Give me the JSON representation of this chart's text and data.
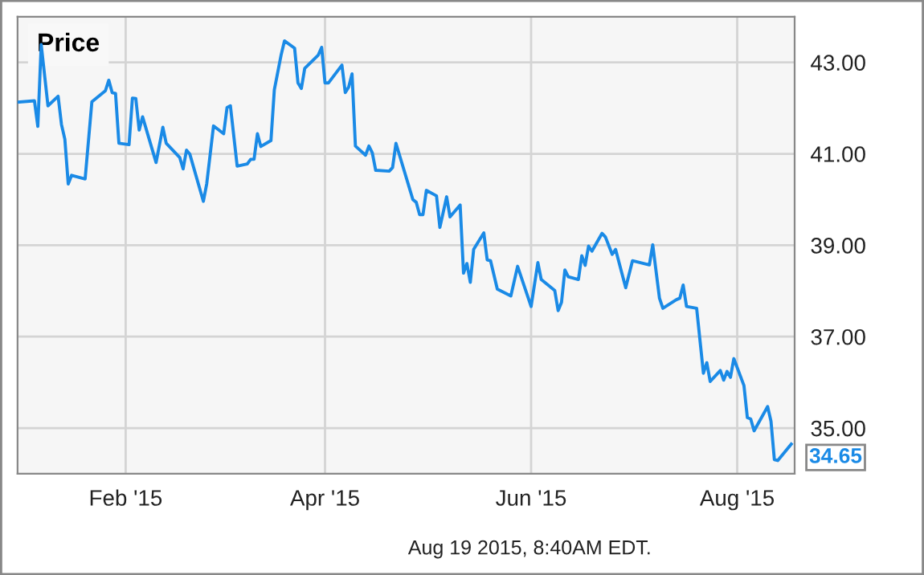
{
  "chart_data": {
    "type": "line",
    "title": "Price",
    "x": [
      "2014-12-31",
      "2015-01-05",
      "2015-01-06",
      "2015-01-07",
      "2015-01-09",
      "2015-01-12",
      "2015-01-13",
      "2015-01-14",
      "2015-01-15",
      "2015-01-16",
      "2015-01-20",
      "2015-01-22",
      "2015-01-26",
      "2015-01-27",
      "2015-01-28",
      "2015-01-29",
      "2015-01-30",
      "2015-02-02",
      "2015-02-03",
      "2015-02-04",
      "2015-02-05",
      "2015-02-06",
      "2015-02-10",
      "2015-02-12",
      "2015-02-13",
      "2015-02-17",
      "2015-02-18",
      "2015-02-19",
      "2015-02-20",
      "2015-02-24",
      "2015-02-25",
      "2015-02-27",
      "2015-03-02",
      "2015-03-03",
      "2015-03-04",
      "2015-03-06",
      "2015-03-09",
      "2015-03-10",
      "2015-03-11",
      "2015-03-12",
      "2015-03-13",
      "2015-03-16",
      "2015-03-17",
      "2015-03-19",
      "2015-03-20",
      "2015-03-23",
      "2015-03-24",
      "2015-03-25",
      "2015-03-26",
      "2015-03-30",
      "2015-03-31",
      "2015-04-01",
      "2015-04-02",
      "2015-04-06",
      "2015-04-07",
      "2015-04-08",
      "2015-04-09",
      "2015-04-10",
      "2015-04-13",
      "2015-04-14",
      "2015-04-15",
      "2015-04-16",
      "2015-04-20",
      "2015-04-21",
      "2015-04-22",
      "2015-04-27",
      "2015-04-28",
      "2015-04-29",
      "2015-04-30",
      "2015-05-01",
      "2015-05-04",
      "2015-05-05",
      "2015-05-07",
      "2015-05-08",
      "2015-05-11",
      "2015-05-12",
      "2015-05-13",
      "2015-05-14",
      "2015-05-15",
      "2015-05-18",
      "2015-05-19",
      "2015-05-20",
      "2015-05-22",
      "2015-05-26",
      "2015-05-28",
      "2015-06-01",
      "2015-06-03",
      "2015-06-04",
      "2015-06-08",
      "2015-06-09",
      "2015-06-10",
      "2015-06-11",
      "2015-06-12",
      "2015-06-15",
      "2015-06-16",
      "2015-06-17",
      "2015-06-18",
      "2015-06-19",
      "2015-06-22",
      "2015-06-23",
      "2015-06-25",
      "2015-06-26",
      "2015-06-29",
      "2015-07-01",
      "2015-07-06",
      "2015-07-07",
      "2015-07-09",
      "2015-07-10",
      "2015-07-14",
      "2015-07-15",
      "2015-07-16",
      "2015-07-17",
      "2015-07-20",
      "2015-07-22",
      "2015-07-23",
      "2015-07-24",
      "2015-07-27",
      "2015-07-28",
      "2015-07-29",
      "2015-07-30",
      "2015-07-31",
      "2015-08-03",
      "2015-08-04",
      "2015-08-05",
      "2015-08-06",
      "2015-08-10",
      "2015-08-11",
      "2015-08-12",
      "2015-08-13",
      "2015-08-17"
    ],
    "series": [
      {
        "color": "#1a8ae6",
        "values": [
          42.13,
          42.16,
          41.6,
          43.39,
          42.05,
          42.26,
          41.64,
          41.32,
          40.34,
          40.53,
          40.45,
          42.14,
          42.38,
          42.61,
          42.34,
          42.32,
          41.23,
          41.2,
          42.22,
          42.21,
          41.52,
          41.81,
          40.81,
          41.58,
          41.23,
          40.92,
          40.67,
          41.08,
          40.99,
          39.96,
          40.35,
          41.61,
          41.44,
          42.01,
          42.05,
          40.73,
          40.78,
          40.88,
          40.88,
          41.44,
          41.16,
          41.29,
          42.4,
          43.16,
          43.47,
          43.31,
          42.55,
          42.43,
          42.87,
          43.16,
          43.33,
          42.55,
          42.55,
          42.94,
          42.34,
          42.46,
          42.75,
          41.17,
          40.97,
          41.17,
          41.02,
          40.64,
          40.62,
          40.7,
          41.23,
          40.0,
          39.94,
          39.67,
          39.67,
          40.2,
          40.08,
          39.39,
          40.06,
          39.62,
          39.88,
          38.39,
          38.6,
          38.19,
          38.91,
          39.27,
          38.68,
          38.66,
          38.04,
          37.89,
          38.54,
          37.66,
          38.62,
          38.25,
          38.01,
          37.57,
          37.75,
          38.46,
          38.31,
          38.25,
          38.77,
          38.56,
          38.98,
          38.87,
          39.26,
          39.18,
          38.8,
          38.91,
          38.07,
          38.66,
          38.57,
          39.01,
          37.84,
          37.62,
          37.81,
          37.84,
          38.13,
          37.66,
          37.62,
          36.2,
          36.43,
          36.02,
          36.26,
          36.05,
          36.24,
          36.11,
          36.52,
          35.93,
          35.23,
          35.2,
          34.94,
          35.47,
          35.15,
          34.31,
          34.29,
          34.65
        ]
      }
    ],
    "xlim": [
      "2014-12-31",
      "2015-08-18"
    ],
    "xticks": [
      {
        "value": "2015-02-01",
        "label": "Feb '15"
      },
      {
        "value": "2015-04-01",
        "label": "Apr '15"
      },
      {
        "value": "2015-06-01",
        "label": "Jun '15"
      },
      {
        "value": "2015-08-01",
        "label": "Aug '15"
      }
    ],
    "ylim": [
      34.0,
      44.0
    ],
    "yticks": [
      {
        "value": 35,
        "label": "35.00"
      },
      {
        "value": 37,
        "label": "37.00"
      },
      {
        "value": 39,
        "label": "39.00"
      },
      {
        "value": 41,
        "label": "41.00"
      },
      {
        "value": 43,
        "label": "43.00"
      }
    ],
    "grid": true,
    "legend": false,
    "annotations": [
      {
        "text": "34.65",
        "x": "2015-08-17",
        "y": 34.65
      },
      "Aug 19 2015, 8:40AM EDT."
    ]
  }
}
